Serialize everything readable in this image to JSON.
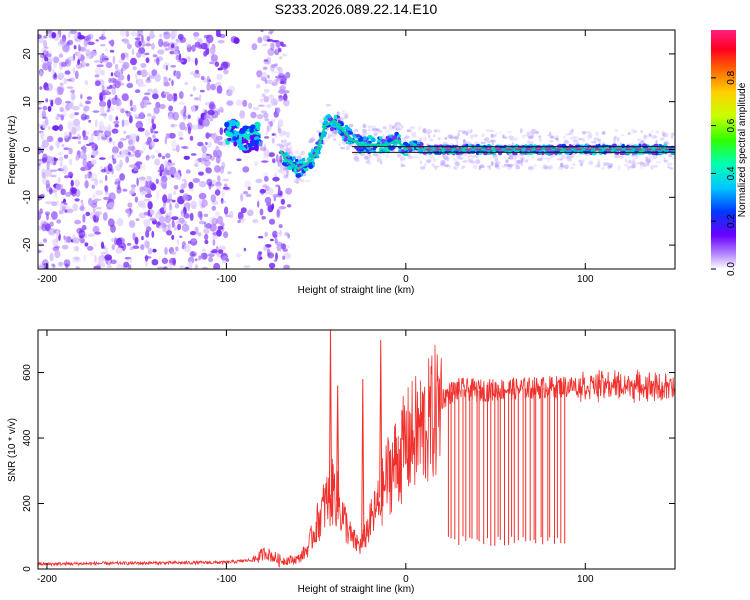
{
  "title": "S233.2026.089.22.14.E10",
  "colors": {
    "trace": "#f0302c",
    "spectral_low": "#7b2cff",
    "spectral_high": "#ff2060",
    "axes": "#000000"
  },
  "chart_data": [
    {
      "type": "heatmap",
      "xlabel": "Height of straight line (km)",
      "ylabel": "Frequency (Hz)",
      "xlim": [
        -205,
        150
      ],
      "ylim": [
        -25,
        25
      ],
      "x_ticks": [
        -200,
        -100,
        0,
        100
      ],
      "y_ticks": [
        -20,
        -10,
        0,
        10,
        20
      ],
      "colorbar": {
        "label": "Normalized spectral amplitude",
        "range": [
          0,
          1
        ],
        "ticks": [
          "0.0",
          "0.2",
          "0.4",
          "0.6",
          "0.8"
        ],
        "tick_values": [
          0,
          0.2,
          0.4,
          0.6,
          0.8
        ]
      },
      "noise_region_x": [
        -205,
        -70
      ],
      "ridge": {
        "x": [
          -100,
          -92,
          -88,
          -80,
          -72,
          -67,
          -60,
          -55,
          -50,
          -45,
          -40,
          -35,
          -30,
          -25,
          -20,
          -15,
          -10,
          -5,
          0,
          5,
          10,
          20,
          40,
          60,
          80,
          100,
          110,
          120,
          130,
          150
        ],
        "y": [
          4,
          3,
          2,
          3,
          1,
          -2,
          -4,
          -3,
          -1,
          5,
          6,
          4,
          2,
          1,
          1,
          1,
          1,
          2,
          0,
          1,
          0,
          0,
          0,
          0,
          0,
          0,
          0,
          0,
          0,
          0
        ]
      }
    },
    {
      "type": "line",
      "xlabel": "Height of straight line (km)",
      "ylabel": "SNR (10 * v/v)",
      "xlim": [
        -205,
        150
      ],
      "ylim": [
        0,
        730
      ],
      "x_ticks": [
        -200,
        -100,
        0,
        100
      ],
      "y_ticks": [
        0,
        200,
        400,
        600
      ],
      "envelope": {
        "x": [
          -205,
          -150,
          -100,
          -85,
          -78,
          -70,
          -60,
          -55,
          -50,
          -45,
          -40,
          -35,
          -30,
          -25,
          -20,
          -15,
          -10,
          -5,
          0,
          5,
          10,
          15,
          20,
          25,
          30,
          40,
          60,
          80,
          100,
          120,
          140,
          150
        ],
        "y": [
          15,
          18,
          20,
          28,
          50,
          25,
          30,
          60,
          130,
          200,
          240,
          160,
          90,
          70,
          140,
          200,
          290,
          330,
          380,
          410,
          430,
          460,
          520,
          540,
          550,
          545,
          550,
          555,
          560,
          560,
          555,
          550
        ]
      },
      "spikes": [
        {
          "x": -42,
          "y": 730
        },
        {
          "x": -38,
          "y": 560
        },
        {
          "x": -24,
          "y": 580
        },
        {
          "x": -14,
          "y": 700
        }
      ],
      "dropouts": {
        "x_range": [
          23,
          90
        ],
        "count": 34,
        "min_y": 70
      }
    }
  ]
}
